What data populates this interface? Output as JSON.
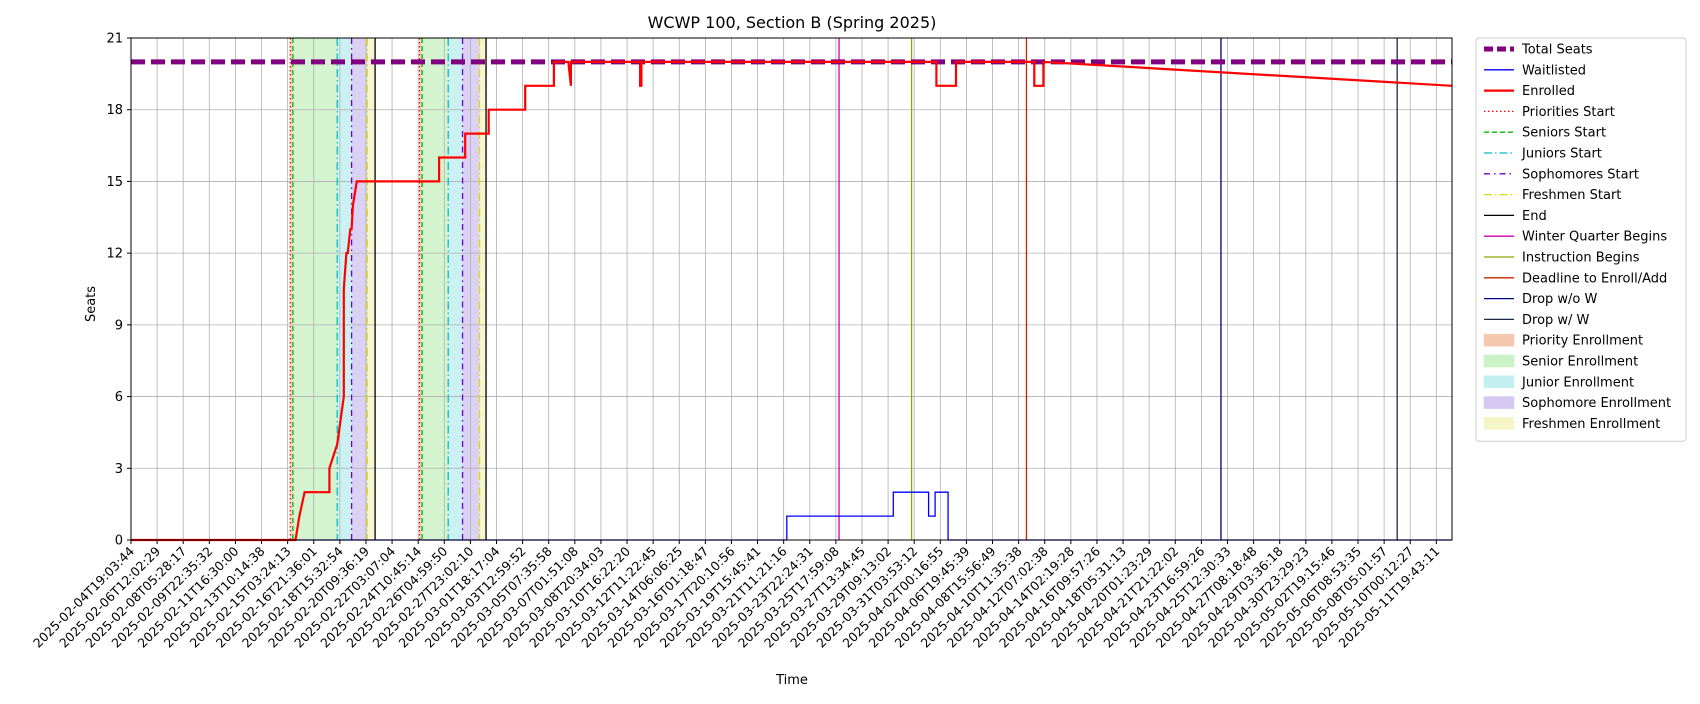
{
  "chart_data": {
    "type": "line",
    "title": "WCWP 100, Section B (Spring 2025)",
    "xlabel": "Time",
    "ylabel": "Seats",
    "ylim": [
      0,
      21
    ],
    "yticks": [
      0,
      3,
      6,
      9,
      12,
      15,
      18,
      21
    ],
    "grid": true,
    "legend_position": "outside right",
    "x_tick_labels": [
      "2025-02-04T19:03:44",
      "2025-02-06T12:02:29",
      "2025-02-08T05:28:17",
      "2025-02-09T22:35:32",
      "2025-02-11T16:30:00",
      "2025-02-13T10:14:38",
      "2025-02-15T03:24:13",
      "2025-02-16T21:36:01",
      "2025-02-18T15:32:54",
      "2025-02-20T09:36:19",
      "2025-02-22T03:07:04",
      "2025-02-24T10:45:14",
      "2025-02-26T04:59:50",
      "2025-02-27T23:02:10",
      "2025-03-01T18:17:04",
      "2025-03-03T12:59:52",
      "2025-03-05T07:35:58",
      "2025-03-07T01:51:08",
      "2025-03-08T20:34:03",
      "2025-03-10T16:22:20",
      "2025-03-12T11:22:45",
      "2025-03-14T06:06:25",
      "2025-03-16T01:18:47",
      "2025-03-17T20:10:56",
      "2025-03-19T15:45:41",
      "2025-03-21T11:21:16",
      "2025-03-23T22:24:31",
      "2025-03-25T17:59:08",
      "2025-03-27T13:34:45",
      "2025-03-29T09:13:02",
      "2025-03-31T03:53:12",
      "2025-04-02T00:16:55",
      "2025-04-06T19:45:39",
      "2025-04-08T15:56:49",
      "2025-04-10T11:35:38",
      "2025-04-12T07:02:38",
      "2025-04-14T02:19:28",
      "2025-04-16T09:57:26",
      "2025-04-18T05:31:13",
      "2025-04-20T01:23:29",
      "2025-04-21T21:22:02",
      "2025-04-23T16:59:26",
      "2025-04-25T12:30:33",
      "2025-04-27T08:18:48",
      "2025-04-29T03:36:18",
      "2025-04-30T23:29:23",
      "2025-05-02T19:15:46",
      "2025-05-06T08:53:35",
      "2025-05-08T05:01:57",
      "2025-05-10T00:12:27",
      "2025-05-11T19:43:11"
    ],
    "x_range_tick_index": [
      0,
      50.6
    ],
    "series": [
      {
        "name": "Total Seats",
        "style": "dashed-thick",
        "color": "#800080",
        "x": [
          0,
          50.6
        ],
        "y": [
          20,
          20
        ]
      },
      {
        "name": "Waitlisted",
        "style": "solid",
        "color": "#0000ff",
        "x": [
          0,
          25.12,
          25.12,
          29.2,
          29.2,
          30.55,
          30.55,
          30.8,
          30.8,
          31.3,
          31.3,
          50.6
        ],
        "y": [
          0,
          0,
          1,
          1,
          2,
          2,
          1,
          1,
          2,
          2,
          0,
          0
        ]
      },
      {
        "name": "Enrolled",
        "style": "solid-thick",
        "color": "#ff0000",
        "x": [
          0,
          6.3,
          6.45,
          6.45,
          6.65,
          6.65,
          7.6,
          7.6,
          7.9,
          7.9,
          8.15,
          8.15,
          8.25,
          8.3,
          8.4,
          8.45,
          8.5,
          8.5,
          8.65,
          8.65,
          11.8,
          11.8,
          12.8,
          12.8,
          13.7,
          13.7,
          15.1,
          15.1,
          16.2,
          16.2,
          16.75,
          16.85,
          16.85,
          19.5,
          19.5,
          19.55,
          19.55,
          30.85,
          30.85,
          31.6,
          31.6,
          34.6,
          34.6,
          34.95,
          34.95,
          50.6
        ],
        "y": [
          0,
          0,
          1,
          1,
          2,
          2,
          2,
          3,
          4,
          4,
          6,
          10.5,
          12,
          12,
          13,
          13,
          14,
          14,
          15,
          15,
          15,
          16,
          16,
          17,
          17,
          18,
          18,
          19,
          19,
          20,
          20,
          19,
          20,
          20,
          19,
          19,
          20,
          20,
          19,
          19,
          20,
          20,
          19,
          19,
          20,
          19
        ]
      }
    ],
    "event_lines": [
      {
        "name": "Priorities Start",
        "x": 6.1,
        "color": "#ff0000",
        "style": "dotted"
      },
      {
        "name": "Priorities Start",
        "x": 11.05,
        "color": "#ff0000",
        "style": "dotted"
      },
      {
        "name": "Seniors Start",
        "x": 6.2,
        "color": "#00bb00",
        "style": "dashed"
      },
      {
        "name": "Seniors Start",
        "x": 11.15,
        "color": "#00bb00",
        "style": "dashed"
      },
      {
        "name": "Juniors Start",
        "x": 7.9,
        "color": "#00bfbf",
        "style": "dashdot"
      },
      {
        "name": "Juniors Start",
        "x": 12.15,
        "color": "#00bfbf",
        "style": "dashdot"
      },
      {
        "name": "Sophomores Start",
        "x": 8.45,
        "color": "#6a00cc",
        "style": "dashdot-dense"
      },
      {
        "name": "Sophomores Start",
        "x": 12.7,
        "color": "#6a00cc",
        "style": "dashdot-dense"
      },
      {
        "name": "Freshmen Start",
        "x": 9.05,
        "color": "#dddd00",
        "style": "dashdot"
      },
      {
        "name": "Freshmen Start",
        "x": 13.35,
        "color": "#dddd00",
        "style": "dashdot"
      },
      {
        "name": "End",
        "x": 9.35,
        "color": "#000000",
        "style": "solid"
      },
      {
        "name": "End",
        "x": 13.6,
        "color": "#000000",
        "style": "solid"
      },
      {
        "name": "Winter Quarter Begins",
        "x": 27.12,
        "color": "#cc00aa",
        "style": "solid"
      },
      {
        "name": "Instruction Begins",
        "x": 29.9,
        "color": "#88aa00",
        "style": "solid"
      },
      {
        "name": "Deadline to Enroll/Add",
        "x": 34.3,
        "color": "#cc2200",
        "style": "solid"
      },
      {
        "name": "Drop w/o W",
        "x": 41.75,
        "color": "#000080",
        "style": "solid"
      },
      {
        "name": "Drop w/ W",
        "x": 48.5,
        "color": "#1a2a44",
        "style": "solid"
      }
    ],
    "enrollment_windows": [
      {
        "name": "Priority Enrollment",
        "from": 6.1,
        "to": 6.2,
        "color": "#f5c8b0"
      },
      {
        "name": "Senior Enrollment",
        "from": 6.2,
        "to": 7.9,
        "color": "#ccf2c8"
      },
      {
        "name": "Junior Enrollment",
        "from": 7.9,
        "to": 8.45,
        "color": "#c2eff0"
      },
      {
        "name": "Sophomore Enrollment",
        "from": 8.45,
        "to": 9.05,
        "color": "#d5c9f2"
      },
      {
        "name": "Freshmen Enrollment",
        "from": 9.05,
        "to": 9.35,
        "color": "#f5f5c8"
      },
      {
        "name": "Priority Enrollment",
        "from": 11.05,
        "to": 11.15,
        "color": "#f5c8b0"
      },
      {
        "name": "Senior Enrollment",
        "from": 11.15,
        "to": 12.15,
        "color": "#ccf2c8"
      },
      {
        "name": "Junior Enrollment",
        "from": 12.15,
        "to": 12.7,
        "color": "#c2eff0"
      },
      {
        "name": "Sophomore Enrollment",
        "from": 12.7,
        "to": 13.35,
        "color": "#d5c9f2"
      },
      {
        "name": "Freshmen Enrollment",
        "from": 13.35,
        "to": 13.6,
        "color": "#f5f5c8"
      }
    ],
    "legend": [
      {
        "label": "Total Seats",
        "kind": "line",
        "color": "#800080",
        "style": "dashed-thick"
      },
      {
        "label": "Waitlisted",
        "kind": "line",
        "color": "#0000ff",
        "style": "solid"
      },
      {
        "label": "Enrolled",
        "kind": "line",
        "color": "#ff0000",
        "style": "solid-thick"
      },
      {
        "label": "Priorities Start",
        "kind": "line",
        "color": "#ff0000",
        "style": "dotted"
      },
      {
        "label": "Seniors Start",
        "kind": "line",
        "color": "#00bb00",
        "style": "dashed"
      },
      {
        "label": "Juniors Start",
        "kind": "line",
        "color": "#00bfbf",
        "style": "dashdot"
      },
      {
        "label": "Sophomores Start",
        "kind": "line",
        "color": "#6a00cc",
        "style": "dashdot-dense"
      },
      {
        "label": "Freshmen Start",
        "kind": "line",
        "color": "#dddd00",
        "style": "dashdot"
      },
      {
        "label": "End",
        "kind": "line",
        "color": "#000000",
        "style": "solid"
      },
      {
        "label": "Winter Quarter Begins",
        "kind": "line",
        "color": "#cc00aa",
        "style": "solid"
      },
      {
        "label": "Instruction Begins",
        "kind": "line",
        "color": "#88aa00",
        "style": "solid"
      },
      {
        "label": "Deadline to Enroll/Add",
        "kind": "line",
        "color": "#cc2200",
        "style": "solid"
      },
      {
        "label": "Drop w/o W",
        "kind": "line",
        "color": "#000080",
        "style": "solid"
      },
      {
        "label": "Drop w/ W",
        "kind": "line",
        "color": "#1a2a44",
        "style": "solid"
      },
      {
        "label": "Priority Enrollment",
        "kind": "patch",
        "color": "#f5c8b0"
      },
      {
        "label": "Senior Enrollment",
        "kind": "patch",
        "color": "#ccf2c8"
      },
      {
        "label": "Junior Enrollment",
        "kind": "patch",
        "color": "#c2eff0"
      },
      {
        "label": "Sophomore Enrollment",
        "kind": "patch",
        "color": "#d5c9f2"
      },
      {
        "label": "Freshmen Enrollment",
        "kind": "patch",
        "color": "#f5f5c8"
      }
    ]
  }
}
